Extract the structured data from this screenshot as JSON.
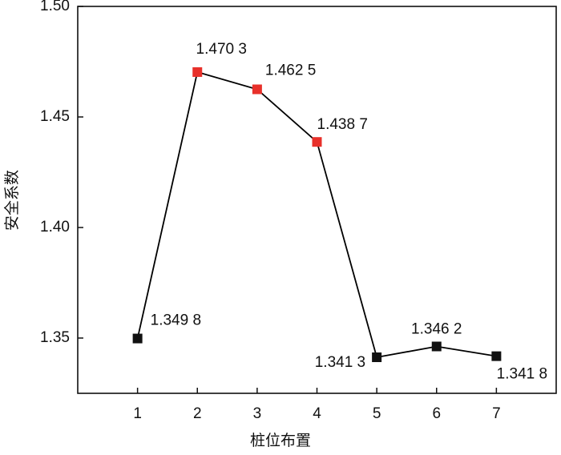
{
  "chart_data": {
    "type": "line",
    "xlabel": "桩位布置",
    "ylabel": "安全系数",
    "x": [
      1,
      2,
      3,
      4,
      5,
      6,
      7
    ],
    "series": [
      {
        "color": "#000000",
        "values": [
          1.3498,
          1.4703,
          1.4625,
          1.4387,
          1.3413,
          1.3462,
          1.3418
        ],
        "value_labels": [
          "1.349 8",
          "1.470 3",
          "1.462 5",
          "1.438 7",
          "1.341 3",
          "1.346 2",
          "1.341 8"
        ],
        "marker_colors": [
          "#111111",
          "#e8302a",
          "#e8302a",
          "#e8302a",
          "#111111",
          "#111111",
          "#111111"
        ]
      }
    ],
    "xlim": [
      0,
      8
    ],
    "xticks": [
      1,
      2,
      3,
      4,
      5,
      6,
      7
    ],
    "ylim": [
      1.325,
      1.5
    ],
    "yticks": [
      1.35,
      {
        "value": 1.4,
        "label": "1.40"
      },
      1.45,
      {
        "value": 1.5,
        "label": "1.50"
      }
    ],
    "grid": false
  }
}
